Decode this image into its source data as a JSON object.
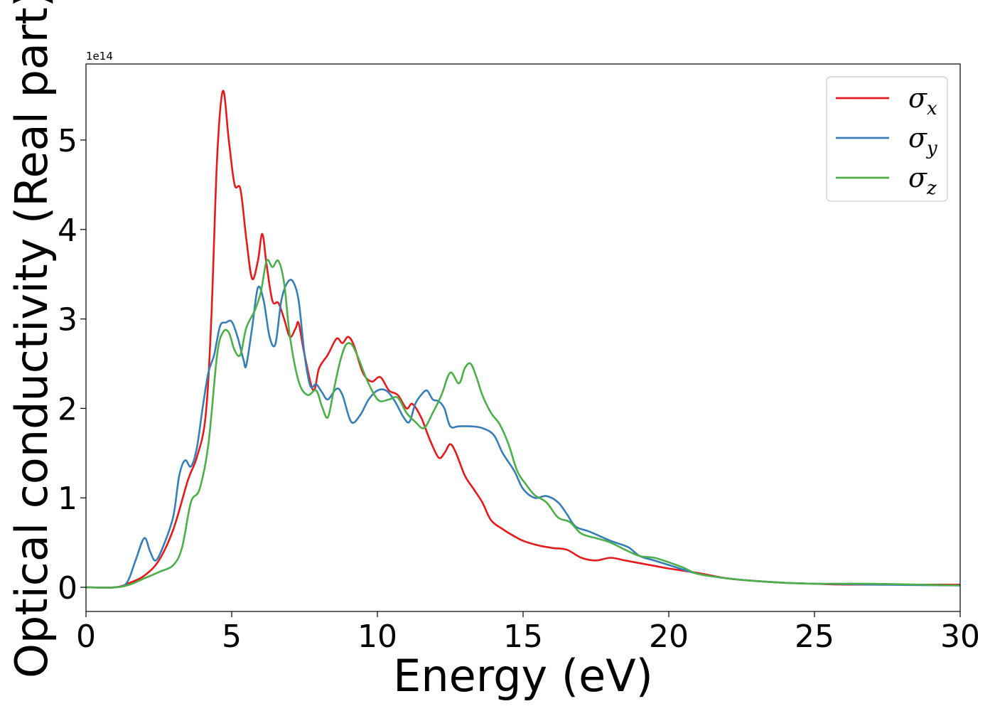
{
  "chart_data": {
    "type": "line",
    "title": "",
    "xlabel": "Energy (eV)",
    "ylabel": "Optical conductivity (Real part)",
    "y_offset_text": "1e14",
    "y_scale": 100000000000000.0,
    "xlim": [
      0,
      30
    ],
    "ylim": [
      -0.27,
      5.85
    ],
    "x_ticks": [
      0,
      5,
      10,
      15,
      20,
      25,
      30
    ],
    "x_tick_labels": [
      "0",
      "5",
      "10",
      "15",
      "20",
      "25",
      "30"
    ],
    "y_ticks": [
      0,
      1,
      2,
      3,
      4,
      5
    ],
    "y_tick_labels": [
      "0",
      "1",
      "2",
      "3",
      "4",
      "5"
    ],
    "grid": false,
    "legend": "top-right",
    "series": [
      {
        "name": "σ",
        "subscript": "x",
        "color": "#e41a1c",
        "points": [
          [
            0,
            0
          ],
          [
            1,
            0
          ],
          [
            1.5,
            0.05
          ],
          [
            2,
            0.13
          ],
          [
            2.5,
            0.3
          ],
          [
            3,
            0.65
          ],
          [
            3.5,
            1.2
          ],
          [
            3.8,
            1.45
          ],
          [
            4.1,
            1.9
          ],
          [
            4.3,
            3.0
          ],
          [
            4.5,
            4.8
          ],
          [
            4.7,
            5.55
          ],
          [
            4.9,
            5.0
          ],
          [
            5.1,
            4.5
          ],
          [
            5.3,
            4.45
          ],
          [
            5.5,
            3.9
          ],
          [
            5.7,
            3.45
          ],
          [
            5.9,
            3.65
          ],
          [
            6.05,
            3.95
          ],
          [
            6.2,
            3.6
          ],
          [
            6.4,
            3.2
          ],
          [
            6.6,
            3.18
          ],
          [
            6.8,
            3.0
          ],
          [
            7.0,
            2.8
          ],
          [
            7.2,
            2.9
          ],
          [
            7.3,
            2.95
          ],
          [
            7.5,
            2.6
          ],
          [
            7.8,
            2.2
          ],
          [
            8.0,
            2.45
          ],
          [
            8.3,
            2.6
          ],
          [
            8.6,
            2.78
          ],
          [
            8.8,
            2.73
          ],
          [
            9.0,
            2.8
          ],
          [
            9.2,
            2.7
          ],
          [
            9.5,
            2.4
          ],
          [
            9.8,
            2.3
          ],
          [
            10.1,
            2.35
          ],
          [
            10.4,
            2.2
          ],
          [
            10.7,
            2.15
          ],
          [
            11.0,
            2.0
          ],
          [
            11.2,
            2.05
          ],
          [
            11.5,
            1.9
          ],
          [
            11.8,
            1.65
          ],
          [
            12.1,
            1.45
          ],
          [
            12.3,
            1.5
          ],
          [
            12.5,
            1.6
          ],
          [
            12.7,
            1.5
          ],
          [
            13.0,
            1.25
          ],
          [
            13.3,
            1.1
          ],
          [
            13.6,
            0.95
          ],
          [
            13.9,
            0.75
          ],
          [
            14.3,
            0.65
          ],
          [
            14.7,
            0.57
          ],
          [
            15.0,
            0.52
          ],
          [
            15.5,
            0.47
          ],
          [
            16.0,
            0.44
          ],
          [
            16.5,
            0.42
          ],
          [
            17.0,
            0.33
          ],
          [
            17.5,
            0.3
          ],
          [
            18.0,
            0.33
          ],
          [
            18.5,
            0.3
          ],
          [
            19.0,
            0.27
          ],
          [
            19.5,
            0.24
          ],
          [
            20.0,
            0.21
          ],
          [
            21.0,
            0.16
          ],
          [
            22.0,
            0.1
          ],
          [
            23.0,
            0.07
          ],
          [
            24.0,
            0.05
          ],
          [
            25.0,
            0.04
          ],
          [
            26.0,
            0.03
          ],
          [
            28.0,
            0.03
          ],
          [
            30.0,
            0.03
          ]
        ]
      },
      {
        "name": "σ",
        "subscript": "y",
        "color": "#377eb8",
        "points": [
          [
            0,
            0
          ],
          [
            1,
            0
          ],
          [
            1.4,
            0.05
          ],
          [
            1.7,
            0.3
          ],
          [
            2.0,
            0.55
          ],
          [
            2.2,
            0.4
          ],
          [
            2.4,
            0.3
          ],
          [
            2.7,
            0.5
          ],
          [
            3.0,
            0.8
          ],
          [
            3.2,
            1.25
          ],
          [
            3.4,
            1.42
          ],
          [
            3.6,
            1.35
          ],
          [
            3.8,
            1.55
          ],
          [
            4.0,
            2.0
          ],
          [
            4.2,
            2.4
          ],
          [
            4.4,
            2.6
          ],
          [
            4.6,
            2.92
          ],
          [
            4.8,
            2.96
          ],
          [
            5.0,
            2.97
          ],
          [
            5.2,
            2.8
          ],
          [
            5.4,
            2.55
          ],
          [
            5.5,
            2.48
          ],
          [
            5.7,
            2.9
          ],
          [
            5.9,
            3.35
          ],
          [
            6.1,
            3.2
          ],
          [
            6.3,
            2.8
          ],
          [
            6.5,
            2.72
          ],
          [
            6.7,
            3.2
          ],
          [
            6.9,
            3.4
          ],
          [
            7.1,
            3.42
          ],
          [
            7.3,
            3.2
          ],
          [
            7.5,
            2.6
          ],
          [
            7.7,
            2.25
          ],
          [
            7.9,
            2.27
          ],
          [
            8.1,
            2.18
          ],
          [
            8.3,
            2.1
          ],
          [
            8.6,
            2.22
          ],
          [
            8.8,
            2.15
          ],
          [
            9.1,
            1.85
          ],
          [
            9.4,
            1.92
          ],
          [
            9.7,
            2.1
          ],
          [
            10.0,
            2.2
          ],
          [
            10.3,
            2.2
          ],
          [
            10.6,
            2.08
          ],
          [
            10.9,
            1.9
          ],
          [
            11.1,
            1.85
          ],
          [
            11.3,
            2.05
          ],
          [
            11.5,
            2.15
          ],
          [
            11.7,
            2.2
          ],
          [
            11.9,
            2.1
          ],
          [
            12.1,
            2.08
          ],
          [
            12.3,
            2.0
          ],
          [
            12.5,
            1.8
          ],
          [
            12.8,
            1.8
          ],
          [
            13.2,
            1.8
          ],
          [
            13.6,
            1.78
          ],
          [
            14.0,
            1.7
          ],
          [
            14.3,
            1.5
          ],
          [
            14.7,
            1.3
          ],
          [
            15.0,
            1.1
          ],
          [
            15.4,
            1.0
          ],
          [
            15.8,
            1.02
          ],
          [
            16.2,
            0.95
          ],
          [
            16.5,
            0.82
          ],
          [
            16.8,
            0.68
          ],
          [
            17.3,
            0.62
          ],
          [
            18.0,
            0.52
          ],
          [
            18.6,
            0.45
          ],
          [
            19.0,
            0.35
          ],
          [
            19.5,
            0.3
          ],
          [
            20.0,
            0.25
          ],
          [
            21.0,
            0.15
          ],
          [
            22.0,
            0.1
          ],
          [
            23.0,
            0.07
          ],
          [
            24.0,
            0.05
          ],
          [
            25.0,
            0.04
          ],
          [
            27.0,
            0.03
          ],
          [
            30.0,
            0.02
          ]
        ]
      },
      {
        "name": "σ",
        "subscript": "z",
        "color": "#4daf4a",
        "points": [
          [
            0,
            0
          ],
          [
            1,
            0
          ],
          [
            1.5,
            0.03
          ],
          [
            2.0,
            0.1
          ],
          [
            2.5,
            0.17
          ],
          [
            3.0,
            0.25
          ],
          [
            3.3,
            0.45
          ],
          [
            3.6,
            0.95
          ],
          [
            3.9,
            1.1
          ],
          [
            4.2,
            1.6
          ],
          [
            4.5,
            2.6
          ],
          [
            4.7,
            2.85
          ],
          [
            4.9,
            2.85
          ],
          [
            5.1,
            2.65
          ],
          [
            5.3,
            2.6
          ],
          [
            5.5,
            2.9
          ],
          [
            5.8,
            3.1
          ],
          [
            6.0,
            3.3
          ],
          [
            6.2,
            3.65
          ],
          [
            6.4,
            3.58
          ],
          [
            6.6,
            3.65
          ],
          [
            6.8,
            3.4
          ],
          [
            7.0,
            2.8
          ],
          [
            7.3,
            2.3
          ],
          [
            7.6,
            2.15
          ],
          [
            7.9,
            2.2
          ],
          [
            8.1,
            2.02
          ],
          [
            8.3,
            1.9
          ],
          [
            8.5,
            2.2
          ],
          [
            8.7,
            2.5
          ],
          [
            8.9,
            2.7
          ],
          [
            9.1,
            2.72
          ],
          [
            9.3,
            2.6
          ],
          [
            9.6,
            2.35
          ],
          [
            9.9,
            2.15
          ],
          [
            10.1,
            2.08
          ],
          [
            10.4,
            2.1
          ],
          [
            10.7,
            2.12
          ],
          [
            11.0,
            1.95
          ],
          [
            11.3,
            1.85
          ],
          [
            11.6,
            1.78
          ],
          [
            11.9,
            1.95
          ],
          [
            12.2,
            2.15
          ],
          [
            12.5,
            2.4
          ],
          [
            12.8,
            2.28
          ],
          [
            13.0,
            2.45
          ],
          [
            13.2,
            2.5
          ],
          [
            13.4,
            2.35
          ],
          [
            13.6,
            2.15
          ],
          [
            13.9,
            1.95
          ],
          [
            14.2,
            1.82
          ],
          [
            14.5,
            1.6
          ],
          [
            14.8,
            1.3
          ],
          [
            15.1,
            1.15
          ],
          [
            15.4,
            1.03
          ],
          [
            15.8,
            0.95
          ],
          [
            16.2,
            0.78
          ],
          [
            16.6,
            0.73
          ],
          [
            17.0,
            0.6
          ],
          [
            17.5,
            0.55
          ],
          [
            18.0,
            0.5
          ],
          [
            18.5,
            0.42
          ],
          [
            19.0,
            0.35
          ],
          [
            19.5,
            0.33
          ],
          [
            20.0,
            0.28
          ],
          [
            20.5,
            0.22
          ],
          [
            21.0,
            0.15
          ],
          [
            22.0,
            0.1
          ],
          [
            23.0,
            0.07
          ],
          [
            24.0,
            0.05
          ],
          [
            25.0,
            0.04
          ],
          [
            27.0,
            0.04
          ],
          [
            30.0,
            0.02
          ]
        ]
      }
    ]
  }
}
